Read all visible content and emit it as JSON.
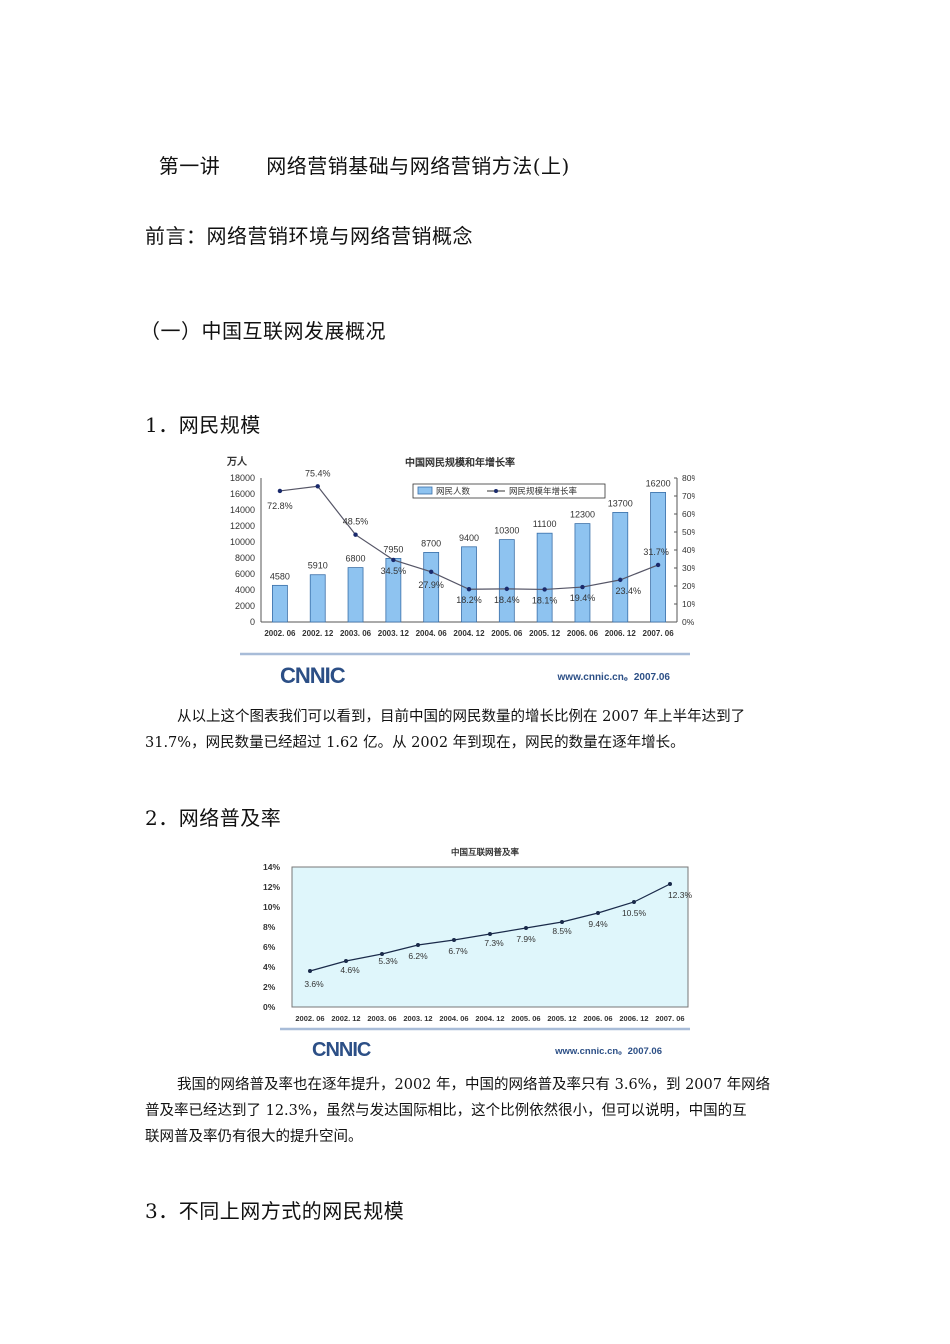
{
  "document": {
    "title": "第一讲\t\t网络营销基础与网络营销方法(上)",
    "title_part1": "第一讲",
    "title_part2": "网络营销基础与网络营销方法(上)",
    "preface": "前言：网络营销环境与网络营销概念",
    "section1": "（一）中国互联网发展概况",
    "sub1": "1．网民规模",
    "para1_line1": "从以上这个图表我们可以看到，目前中国的网民数量的增长比例在 2007 年上半年达到了",
    "para1_line2": "31.7%，网民数量已经超过 1.62 亿。从 2002 年到现在，网民的数量在逐年增长。",
    "sub2": "2．网络普及率",
    "para2_line1": "我国的网络普及率也在逐年提升，2002 年，中国的网络普及率只有 3.6%，到 2007 年网络",
    "para2_line2": "普及率已经达到了 12.3%，虽然与发达国际相比，这个比例依然很小，但可以说明，中国的互",
    "para2_line3": "联网普及率仍有很大的提升空间。",
    "sub3": "3．不同上网方式的网民规模"
  },
  "chart_data": [
    {
      "type": "bar",
      "title": "中国网民规模和年增长率",
      "ylabel": "万人",
      "ylim": [
        0,
        18000
      ],
      "y2lim": [
        0,
        80
      ],
      "yticks": [
        "0",
        "2000",
        "4000",
        "6000",
        "8000",
        "10000",
        "12000",
        "14000",
        "16000",
        "18000"
      ],
      "y2ticks": [
        "0%",
        "10%",
        "20%",
        "30%",
        "40%",
        "50%",
        "60%",
        "70%",
        "80%"
      ],
      "categories": [
        "2002.06",
        "2002.12",
        "2003.06",
        "2003.12",
        "2004.06",
        "2004.12",
        "2005.06",
        "2005.12",
        "2006.06",
        "2006.12",
        "2007.06"
      ],
      "series": [
        {
          "name": "网民人数",
          "type": "bar",
          "axis": "left",
          "color": "#8ec3f0",
          "values": [
            4580,
            5910,
            6800,
            7950,
            8700,
            9400,
            10300,
            11100,
            12300,
            13700,
            16200
          ]
        },
        {
          "name": "网民规模年增长率",
          "type": "line",
          "axis": "right",
          "color": "#1a2a6c",
          "values": [
            72.8,
            75.4,
            48.5,
            34.5,
            27.9,
            18.2,
            18.4,
            18.1,
            19.4,
            23.4,
            31.7
          ],
          "labels": [
            "72.8%",
            "75.4%",
            "48.5%",
            "34.5%",
            "27.9%",
            "18.2%",
            "18.4%",
            "18.1%",
            "19.4%",
            "23.4%",
            "31.7%"
          ]
        }
      ],
      "legend_position": "top-center",
      "footer_logo": "CNNIC",
      "footer_source": "www.cnnic.cn。2007.06"
    },
    {
      "type": "line",
      "title": "中国互联网普及率",
      "ylim": [
        0,
        14
      ],
      "yticks": [
        "0%",
        "2%",
        "4%",
        "6%",
        "8%",
        "10%",
        "12%",
        "14%"
      ],
      "categories": [
        "2002.06",
        "2002.12",
        "2003.06",
        "2003.12",
        "2004.06",
        "2004.12",
        "2005.06",
        "2005.12",
        "2006.06",
        "2006.12",
        "2007.06"
      ],
      "series": [
        {
          "name": "互联网普及率",
          "color": "#1a2a4a",
          "values": [
            3.6,
            4.6,
            5.3,
            6.2,
            6.7,
            7.3,
            7.9,
            8.5,
            9.4,
            10.5,
            12.3
          ],
          "labels": [
            "3.6%",
            "4.6%",
            "5.3%",
            "6.2%",
            "6.7%",
            "7.3%",
            "7.9%",
            "8.5%",
            "9.4%",
            "10.5%",
            "12.3%"
          ]
        }
      ],
      "background": "#dff6fb",
      "grid": false,
      "footer_logo": "CNNIC",
      "footer_source": "www.cnnic.cn。2007.06"
    }
  ]
}
